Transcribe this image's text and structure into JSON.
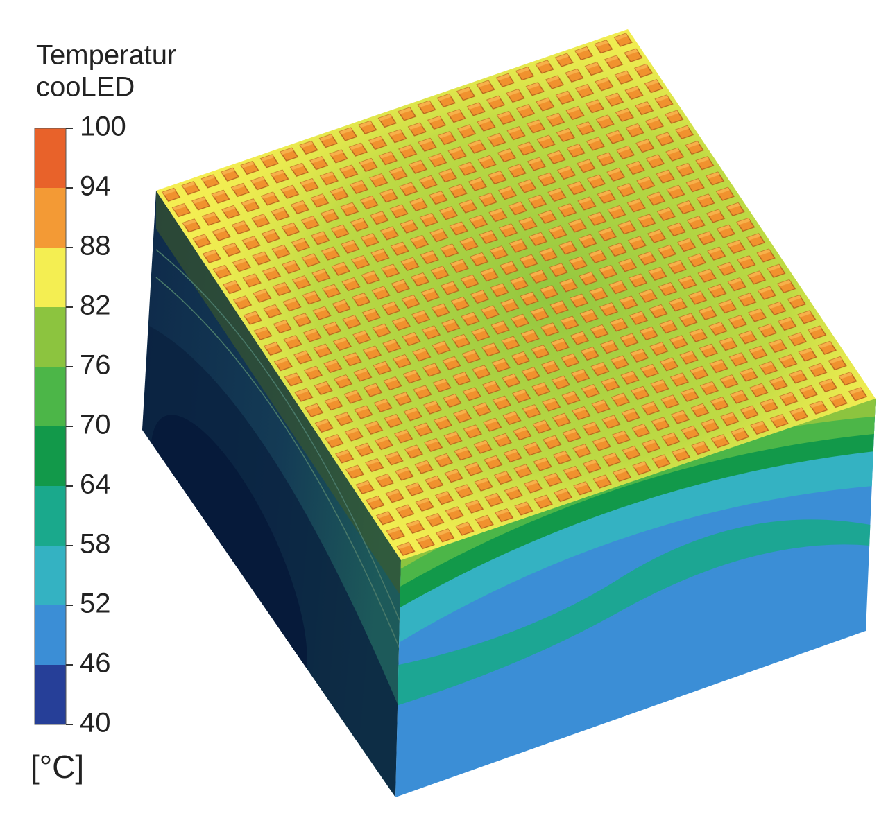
{
  "legend": {
    "title": [
      "Temperatur",
      "cooLED"
    ],
    "ticks": [
      100,
      94,
      88,
      82,
      76,
      70,
      64,
      58,
      52,
      46,
      40
    ],
    "colors": [
      "#e8622a",
      "#f39a35",
      "#f4ee52",
      "#8cc43f",
      "#4cb648",
      "#12994a",
      "#1aa98c",
      "#34b2c2",
      "#3b8ed6",
      "#263f98"
    ],
    "unit": "[°C]"
  }
}
